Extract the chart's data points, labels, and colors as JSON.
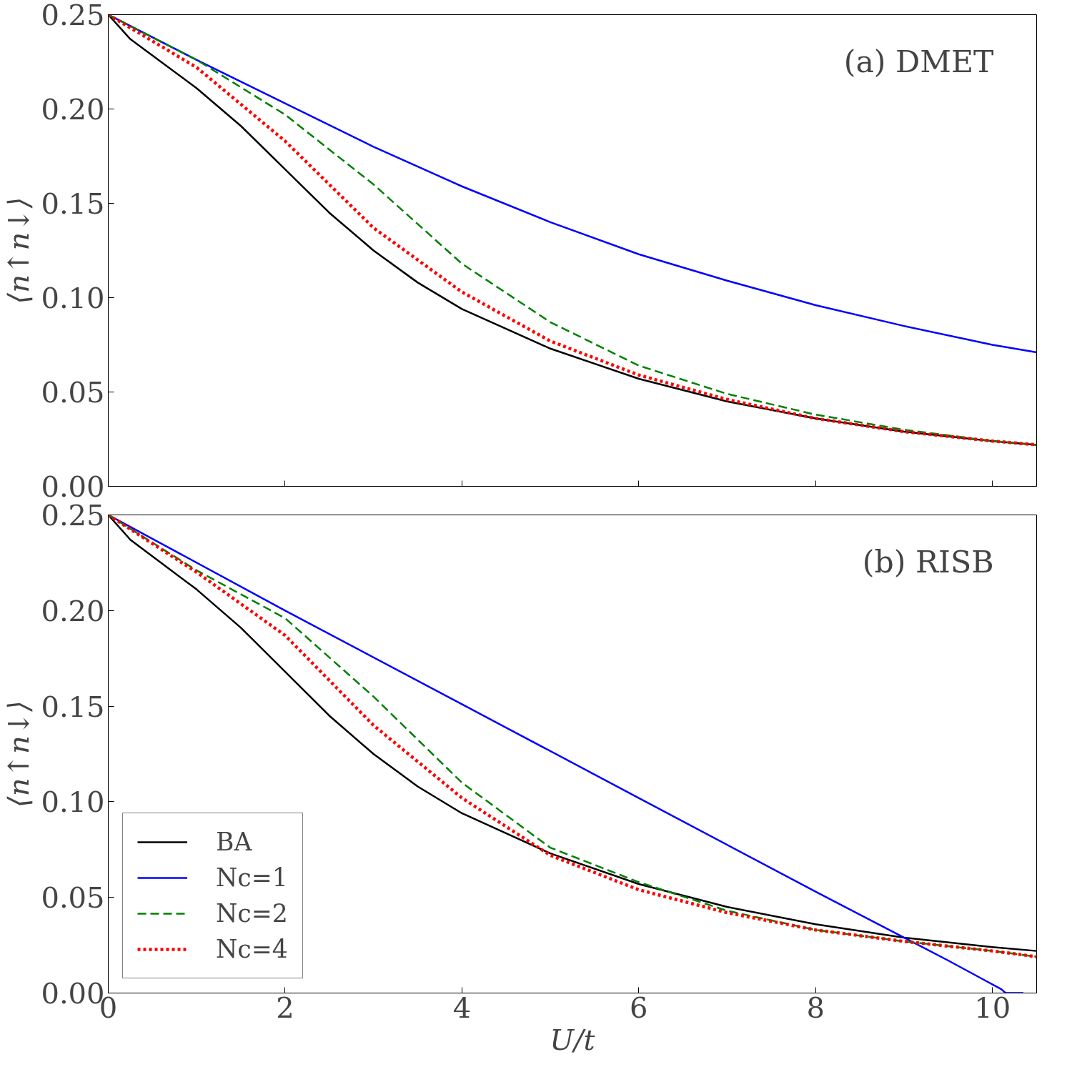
{
  "chart_data": [
    {
      "type": "line",
      "annotations": [
        "(a) DMET"
      ],
      "ylabel": "⟨n↑n↓⟩",
      "xlim": [
        0,
        10.5
      ],
      "ylim": [
        0,
        0.25
      ],
      "xticks": [
        0,
        2,
        4,
        6,
        8,
        10
      ],
      "yticks": [
        {
          "value": 0,
          "label": "0.00"
        },
        {
          "value": 0.05,
          "label": "0.05"
        },
        {
          "value": 0.1,
          "label": "0.10"
        },
        {
          "value": 0.15,
          "label": "0.15"
        },
        {
          "value": 0.2,
          "label": "0.20"
        },
        {
          "value": 0.25,
          "label": "0.25"
        }
      ],
      "tick_labels": "y",
      "grid": false,
      "legend": false,
      "series": [
        {
          "color": "#000000",
          "line_style": "solid",
          "x": [
            0,
            0.25,
            1,
            1.5,
            2,
            2.5,
            3,
            3.5,
            4,
            5,
            6,
            7,
            8,
            9,
            10,
            10.5
          ],
          "values": [
            0.25,
            0.237,
            0.211,
            0.191,
            0.168,
            0.145,
            0.125,
            0.108,
            0.094,
            0.073,
            0.057,
            0.045,
            0.036,
            0.029,
            0.024,
            0.022
          ]
        },
        {
          "color": "#0000ff",
          "line_style": "solid",
          "x": [
            0,
            1,
            2,
            3,
            4,
            5,
            6,
            7,
            8,
            9,
            10,
            10.5
          ],
          "values": [
            0.25,
            0.226,
            0.203,
            0.18,
            0.159,
            0.14,
            0.123,
            0.109,
            0.096,
            0.085,
            0.075,
            0.071
          ]
        },
        {
          "color": "#008000",
          "line_style": "dashed",
          "x": [
            0,
            1,
            2,
            3,
            4,
            5,
            6,
            7,
            8,
            9,
            10,
            10.5
          ],
          "values": [
            0.25,
            0.226,
            0.197,
            0.16,
            0.118,
            0.087,
            0.064,
            0.049,
            0.038,
            0.03,
            0.024,
            0.022
          ]
        },
        {
          "color": "#ff0000",
          "line_style": "dotted",
          "x": [
            0,
            1,
            2,
            3,
            4,
            5,
            6,
            7,
            8,
            9,
            10,
            10.5
          ],
          "values": [
            0.25,
            0.222,
            0.183,
            0.137,
            0.103,
            0.077,
            0.059,
            0.046,
            0.036,
            0.029,
            0.024,
            0.022
          ]
        }
      ]
    },
    {
      "type": "line",
      "annotations": [
        "(b) RISB"
      ],
      "xlabel": "U/t",
      "ylabel": "⟨n↑n↓⟩",
      "xlim": [
        0,
        10.5
      ],
      "ylim": [
        0,
        0.25
      ],
      "xticks": [
        0,
        2,
        4,
        6,
        8,
        10
      ],
      "yticks": [
        {
          "value": 0,
          "label": "0.00"
        },
        {
          "value": 0.05,
          "label": "0.05"
        },
        {
          "value": 0.1,
          "label": "0.10"
        },
        {
          "value": 0.15,
          "label": "0.15"
        },
        {
          "value": 0.2,
          "label": "0.20"
        },
        {
          "value": 0.25,
          "label": "0.25"
        }
      ],
      "grid": false,
      "legend": "bottom left",
      "series": [
        {
          "name": "BA",
          "color": "#000000",
          "line_style": "solid",
          "x": [
            0,
            0.25,
            1,
            1.5,
            2,
            2.5,
            3,
            3.5,
            4,
            5,
            6,
            7,
            8,
            9,
            10,
            10.5
          ],
          "values": [
            0.25,
            0.237,
            0.211,
            0.191,
            0.168,
            0.145,
            0.125,
            0.108,
            0.094,
            0.073,
            0.057,
            0.045,
            0.036,
            0.029,
            0.024,
            0.022
          ]
        },
        {
          "name": "Nc=1",
          "color": "#0000ff",
          "line_style": "solid",
          "x": [
            0,
            2,
            4,
            6,
            8,
            9,
            9.5,
            9.9,
            10.1,
            10.15,
            10.35
          ],
          "values": [
            0.25,
            0.2,
            0.151,
            0.102,
            0.053,
            0.029,
            0.017,
            0.007,
            0.002,
            0,
            0
          ]
        },
        {
          "name": "Nc=2",
          "color": "#008000",
          "line_style": "dashed",
          "x": [
            0,
            1,
            2,
            3,
            4,
            5,
            6,
            7,
            8,
            9,
            10,
            10.5
          ],
          "values": [
            0.25,
            0.221,
            0.196,
            0.155,
            0.11,
            0.076,
            0.058,
            0.043,
            0.033,
            0.027,
            0.022,
            0.019
          ]
        },
        {
          "name": "Nc=4",
          "color": "#ff0000",
          "line_style": "dotted",
          "x": [
            0,
            1,
            2,
            3,
            4,
            5,
            6,
            7,
            8,
            9,
            10,
            10.5
          ],
          "values": [
            0.25,
            0.22,
            0.187,
            0.14,
            0.102,
            0.072,
            0.054,
            0.042,
            0.033,
            0.027,
            0.022,
            0.019
          ]
        }
      ]
    }
  ]
}
